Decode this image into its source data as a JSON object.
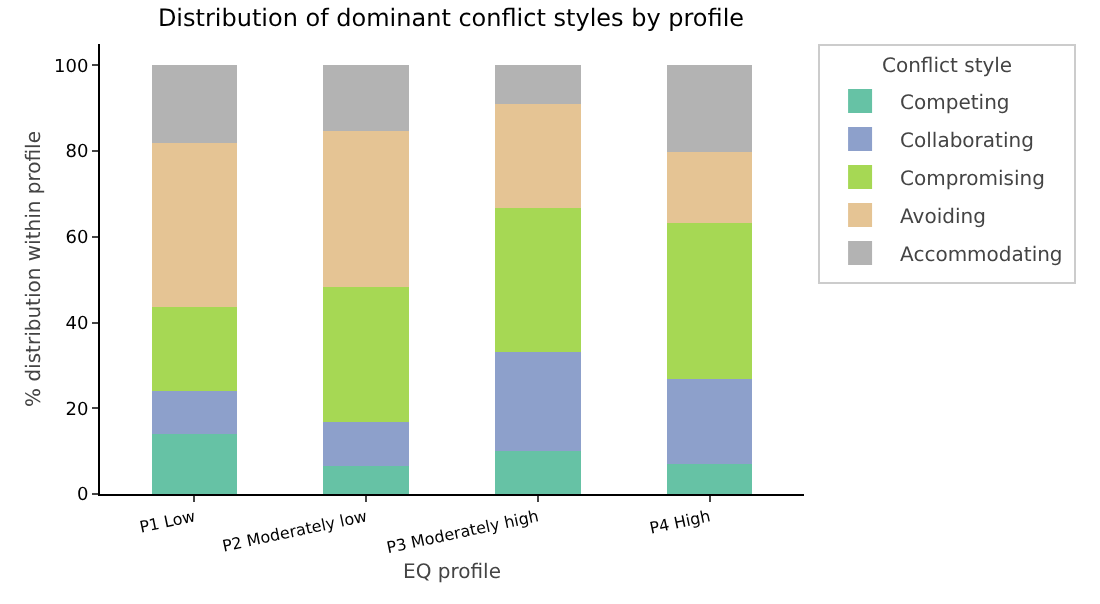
{
  "chart_data": {
    "type": "bar",
    "stacked": true,
    "title": "Distribution of dominant conflict styles by profile",
    "xlabel": "EQ profile",
    "ylabel": "% distribution within profile",
    "legend_title": "Conflict style",
    "legend": "right",
    "categories": [
      "P1 Low",
      "P2 Moderately low",
      "P3 Moderately high",
      "P4 High"
    ],
    "series": [
      {
        "name": "Competing",
        "color": "#66c2a5",
        "values": [
          13.9,
          6.6,
          10.1,
          7.1
        ]
      },
      {
        "name": "Collaborating",
        "color": "#8da0cb",
        "values": [
          10.1,
          10.3,
          23.1,
          19.7
        ]
      },
      {
        "name": "Compromising",
        "color": "#a6d854",
        "values": [
          19.7,
          31.4,
          33.5,
          36.5
        ]
      },
      {
        "name": "Avoiding",
        "color": "#e5c494",
        "values": [
          38.3,
          36.4,
          24.2,
          16.6
        ]
      },
      {
        "name": "Accommodating",
        "color": "#b3b3b3",
        "values": [
          18.0,
          15.3,
          9.1,
          20.1
        ]
      }
    ],
    "ylim": [
      0,
      105
    ],
    "yticks": [
      0,
      20,
      40,
      60,
      80,
      100
    ],
    "grid": false
  }
}
